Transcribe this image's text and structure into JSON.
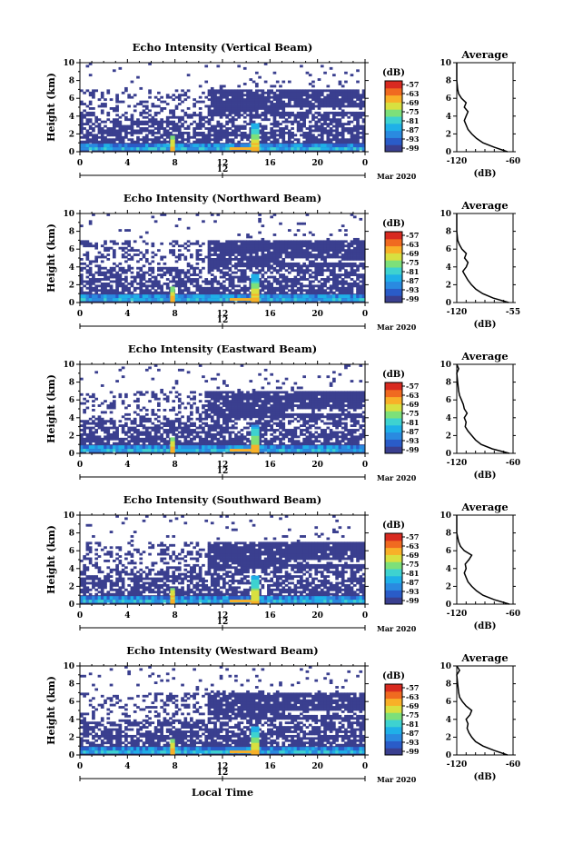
{
  "colors": {
    "background": "#3a3f8f",
    "colormap": [
      "#3a3f8f",
      "#2a5cc8",
      "#2a8ae0",
      "#1fb0e8",
      "#3ed2d0",
      "#7de07a",
      "#d8e040",
      "#f8b028",
      "#f06a20",
      "#d82a20"
    ]
  },
  "footer": {
    "xlabel": "Local Time"
  },
  "chart_data": [
    {
      "type": "heatmap",
      "title": "Echo Intensity (Vertical Beam)",
      "ylabel": "Height (km)",
      "xlim": [
        0,
        24
      ],
      "ylim": [
        0,
        10
      ],
      "x_ticks": [
        "0",
        "4",
        "8",
        "12",
        "16",
        "20",
        "0"
      ],
      "y_ticks": [
        "0",
        "2",
        "4",
        "6",
        "8",
        "10"
      ],
      "date_axis": {
        "tick": "12",
        "date": "Mar 2020"
      },
      "colorbar": {
        "unit": "(dB)",
        "ticks": [
          "-57",
          "-63",
          "-69",
          "-75",
          "-81",
          "-87",
          "-93",
          "-99"
        ]
      },
      "profile": {
        "title": "Average",
        "xlabel": "(dB)",
        "x_ticks": [
          "-120",
          "-60"
        ],
        "xlim": [
          -120,
          -60
        ],
        "points": [
          [
            -66,
            0
          ],
          [
            -80,
            0.5
          ],
          [
            -92,
            1
          ],
          [
            -99,
            1.5
          ],
          [
            -104,
            2
          ],
          [
            -108,
            2.5
          ],
          [
            -110,
            3
          ],
          [
            -112,
            3.5
          ],
          [
            -110,
            4
          ],
          [
            -108,
            4.5
          ],
          [
            -112,
            5
          ],
          [
            -110,
            5.5
          ],
          [
            -115,
            6
          ],
          [
            -118,
            6.5
          ],
          [
            -119,
            7
          ],
          [
            -120,
            8
          ],
          [
            -120,
            10
          ]
        ]
      }
    },
    {
      "type": "heatmap",
      "title": "Echo Intensity (Northward Beam)",
      "ylabel": "Height (km)",
      "xlim": [
        0,
        24
      ],
      "ylim": [
        0,
        10
      ],
      "x_ticks": [
        "0",
        "4",
        "8",
        "12",
        "16",
        "20",
        "0"
      ],
      "y_ticks": [
        "0",
        "2",
        "4",
        "6",
        "8",
        "10"
      ],
      "date_axis": {
        "tick": "12",
        "date": "Mar 2020"
      },
      "colorbar": {
        "unit": "(dB)",
        "ticks": [
          "-57",
          "-63",
          "-69",
          "-75",
          "-81",
          "-87",
          "-93",
          "-99"
        ]
      },
      "profile": {
        "title": "Average",
        "xlabel": "(dB)",
        "x_ticks": [
          "-120",
          "-55"
        ],
        "xlim": [
          -120,
          -55
        ],
        "points": [
          [
            -60,
            0
          ],
          [
            -78,
            0.5
          ],
          [
            -90,
            1
          ],
          [
            -98,
            1.5
          ],
          [
            -103,
            2
          ],
          [
            -107,
            2.5
          ],
          [
            -110,
            3
          ],
          [
            -113,
            3.5
          ],
          [
            -109,
            4
          ],
          [
            -107,
            4.5
          ],
          [
            -111,
            5
          ],
          [
            -109,
            5.5
          ],
          [
            -114,
            6
          ],
          [
            -117,
            6.5
          ],
          [
            -119,
            7
          ],
          [
            -120,
            8
          ],
          [
            -120,
            10
          ]
        ]
      }
    },
    {
      "type": "heatmap",
      "title": "Echo Intensity (Eastward Beam)",
      "ylabel": "Height (km)",
      "xlim": [
        0,
        24
      ],
      "ylim": [
        0,
        10
      ],
      "x_ticks": [
        "0",
        "4",
        "8",
        "12",
        "16",
        "20",
        "0"
      ],
      "y_ticks": [
        "0",
        "2",
        "4",
        "6",
        "8",
        "10"
      ],
      "date_axis": {
        "tick": "12",
        "date": "Mar 2020"
      },
      "colorbar": {
        "unit": "(dB)",
        "ticks": [
          "-57",
          "-63",
          "-69",
          "-75",
          "-81",
          "-87",
          "-93",
          "-99"
        ]
      },
      "profile": {
        "title": "Average",
        "xlabel": "(dB)",
        "x_ticks": [
          "-120",
          "-60"
        ],
        "xlim": [
          -120,
          -60
        ],
        "points": [
          [
            -64,
            0
          ],
          [
            -82,
            0.5
          ],
          [
            -94,
            1
          ],
          [
            -100,
            1.5
          ],
          [
            -104,
            2
          ],
          [
            -108,
            2.5
          ],
          [
            -111,
            3
          ],
          [
            -110,
            3.5
          ],
          [
            -112,
            4
          ],
          [
            -109,
            4.5
          ],
          [
            -112,
            5
          ],
          [
            -113,
            5.5
          ],
          [
            -115,
            6
          ],
          [
            -117,
            6.5
          ],
          [
            -118,
            7
          ],
          [
            -119,
            8
          ],
          [
            -120,
            9
          ],
          [
            -118,
            9.5
          ],
          [
            -120,
            10
          ]
        ]
      }
    },
    {
      "type": "heatmap",
      "title": "Echo Intensity (Southward Beam)",
      "ylabel": "Height (km)",
      "xlim": [
        0,
        24
      ],
      "ylim": [
        0,
        10
      ],
      "x_ticks": [
        "0",
        "4",
        "8",
        "12",
        "16",
        "20",
        "0"
      ],
      "y_ticks": [
        "0",
        "2",
        "4",
        "6",
        "8",
        "10"
      ],
      "date_axis": {
        "tick": "12",
        "date": "Mar 2020"
      },
      "colorbar": {
        "unit": "(dB)",
        "ticks": [
          "-57",
          "-63",
          "-69",
          "-75",
          "-81",
          "-87",
          "-93",
          "-99"
        ]
      },
      "profile": {
        "title": "Average",
        "xlabel": "(dB)",
        "x_ticks": [
          "-120",
          "-60"
        ],
        "xlim": [
          -120,
          -60
        ],
        "points": [
          [
            -64,
            0
          ],
          [
            -80,
            0.5
          ],
          [
            -92,
            1
          ],
          [
            -99,
            1.5
          ],
          [
            -104,
            2
          ],
          [
            -108,
            2.5
          ],
          [
            -110,
            3
          ],
          [
            -112,
            3.5
          ],
          [
            -110,
            4
          ],
          [
            -111,
            4.5
          ],
          [
            -107,
            5
          ],
          [
            -104,
            5.5
          ],
          [
            -112,
            6
          ],
          [
            -116,
            6.5
          ],
          [
            -118,
            7
          ],
          [
            -120,
            8
          ],
          [
            -120,
            10
          ]
        ]
      }
    },
    {
      "type": "heatmap",
      "title": "Echo Intensity (Westward Beam)",
      "ylabel": "Height (km)",
      "xlim": [
        0,
        24
      ],
      "ylim": [
        0,
        10
      ],
      "x_ticks": [
        "0",
        "4",
        "8",
        "12",
        "16",
        "20",
        "0"
      ],
      "y_ticks": [
        "0",
        "2",
        "4",
        "6",
        "8",
        "10"
      ],
      "date_axis": {
        "tick": "12",
        "date": "Mar 2020"
      },
      "colorbar": {
        "unit": "(dB)",
        "ticks": [
          "-57",
          "-63",
          "-69",
          "-75",
          "-81",
          "-87",
          "-93",
          "-99"
        ]
      },
      "profile": {
        "title": "Average",
        "xlabel": "(dB)",
        "x_ticks": [
          "-120",
          "-60"
        ],
        "xlim": [
          -120,
          -60
        ],
        "points": [
          [
            -66,
            0
          ],
          [
            -80,
            0.5
          ],
          [
            -92,
            1
          ],
          [
            -100,
            1.5
          ],
          [
            -104,
            2
          ],
          [
            -107,
            2.5
          ],
          [
            -109,
            3
          ],
          [
            -108,
            3.5
          ],
          [
            -110,
            4
          ],
          [
            -106,
            4.5
          ],
          [
            -104,
            5
          ],
          [
            -110,
            5.5
          ],
          [
            -114,
            6
          ],
          [
            -117,
            6.5
          ],
          [
            -118,
            7
          ],
          [
            -119,
            8
          ],
          [
            -120,
            9
          ],
          [
            -117,
            9.5
          ],
          [
            -120,
            10
          ]
        ]
      }
    }
  ]
}
